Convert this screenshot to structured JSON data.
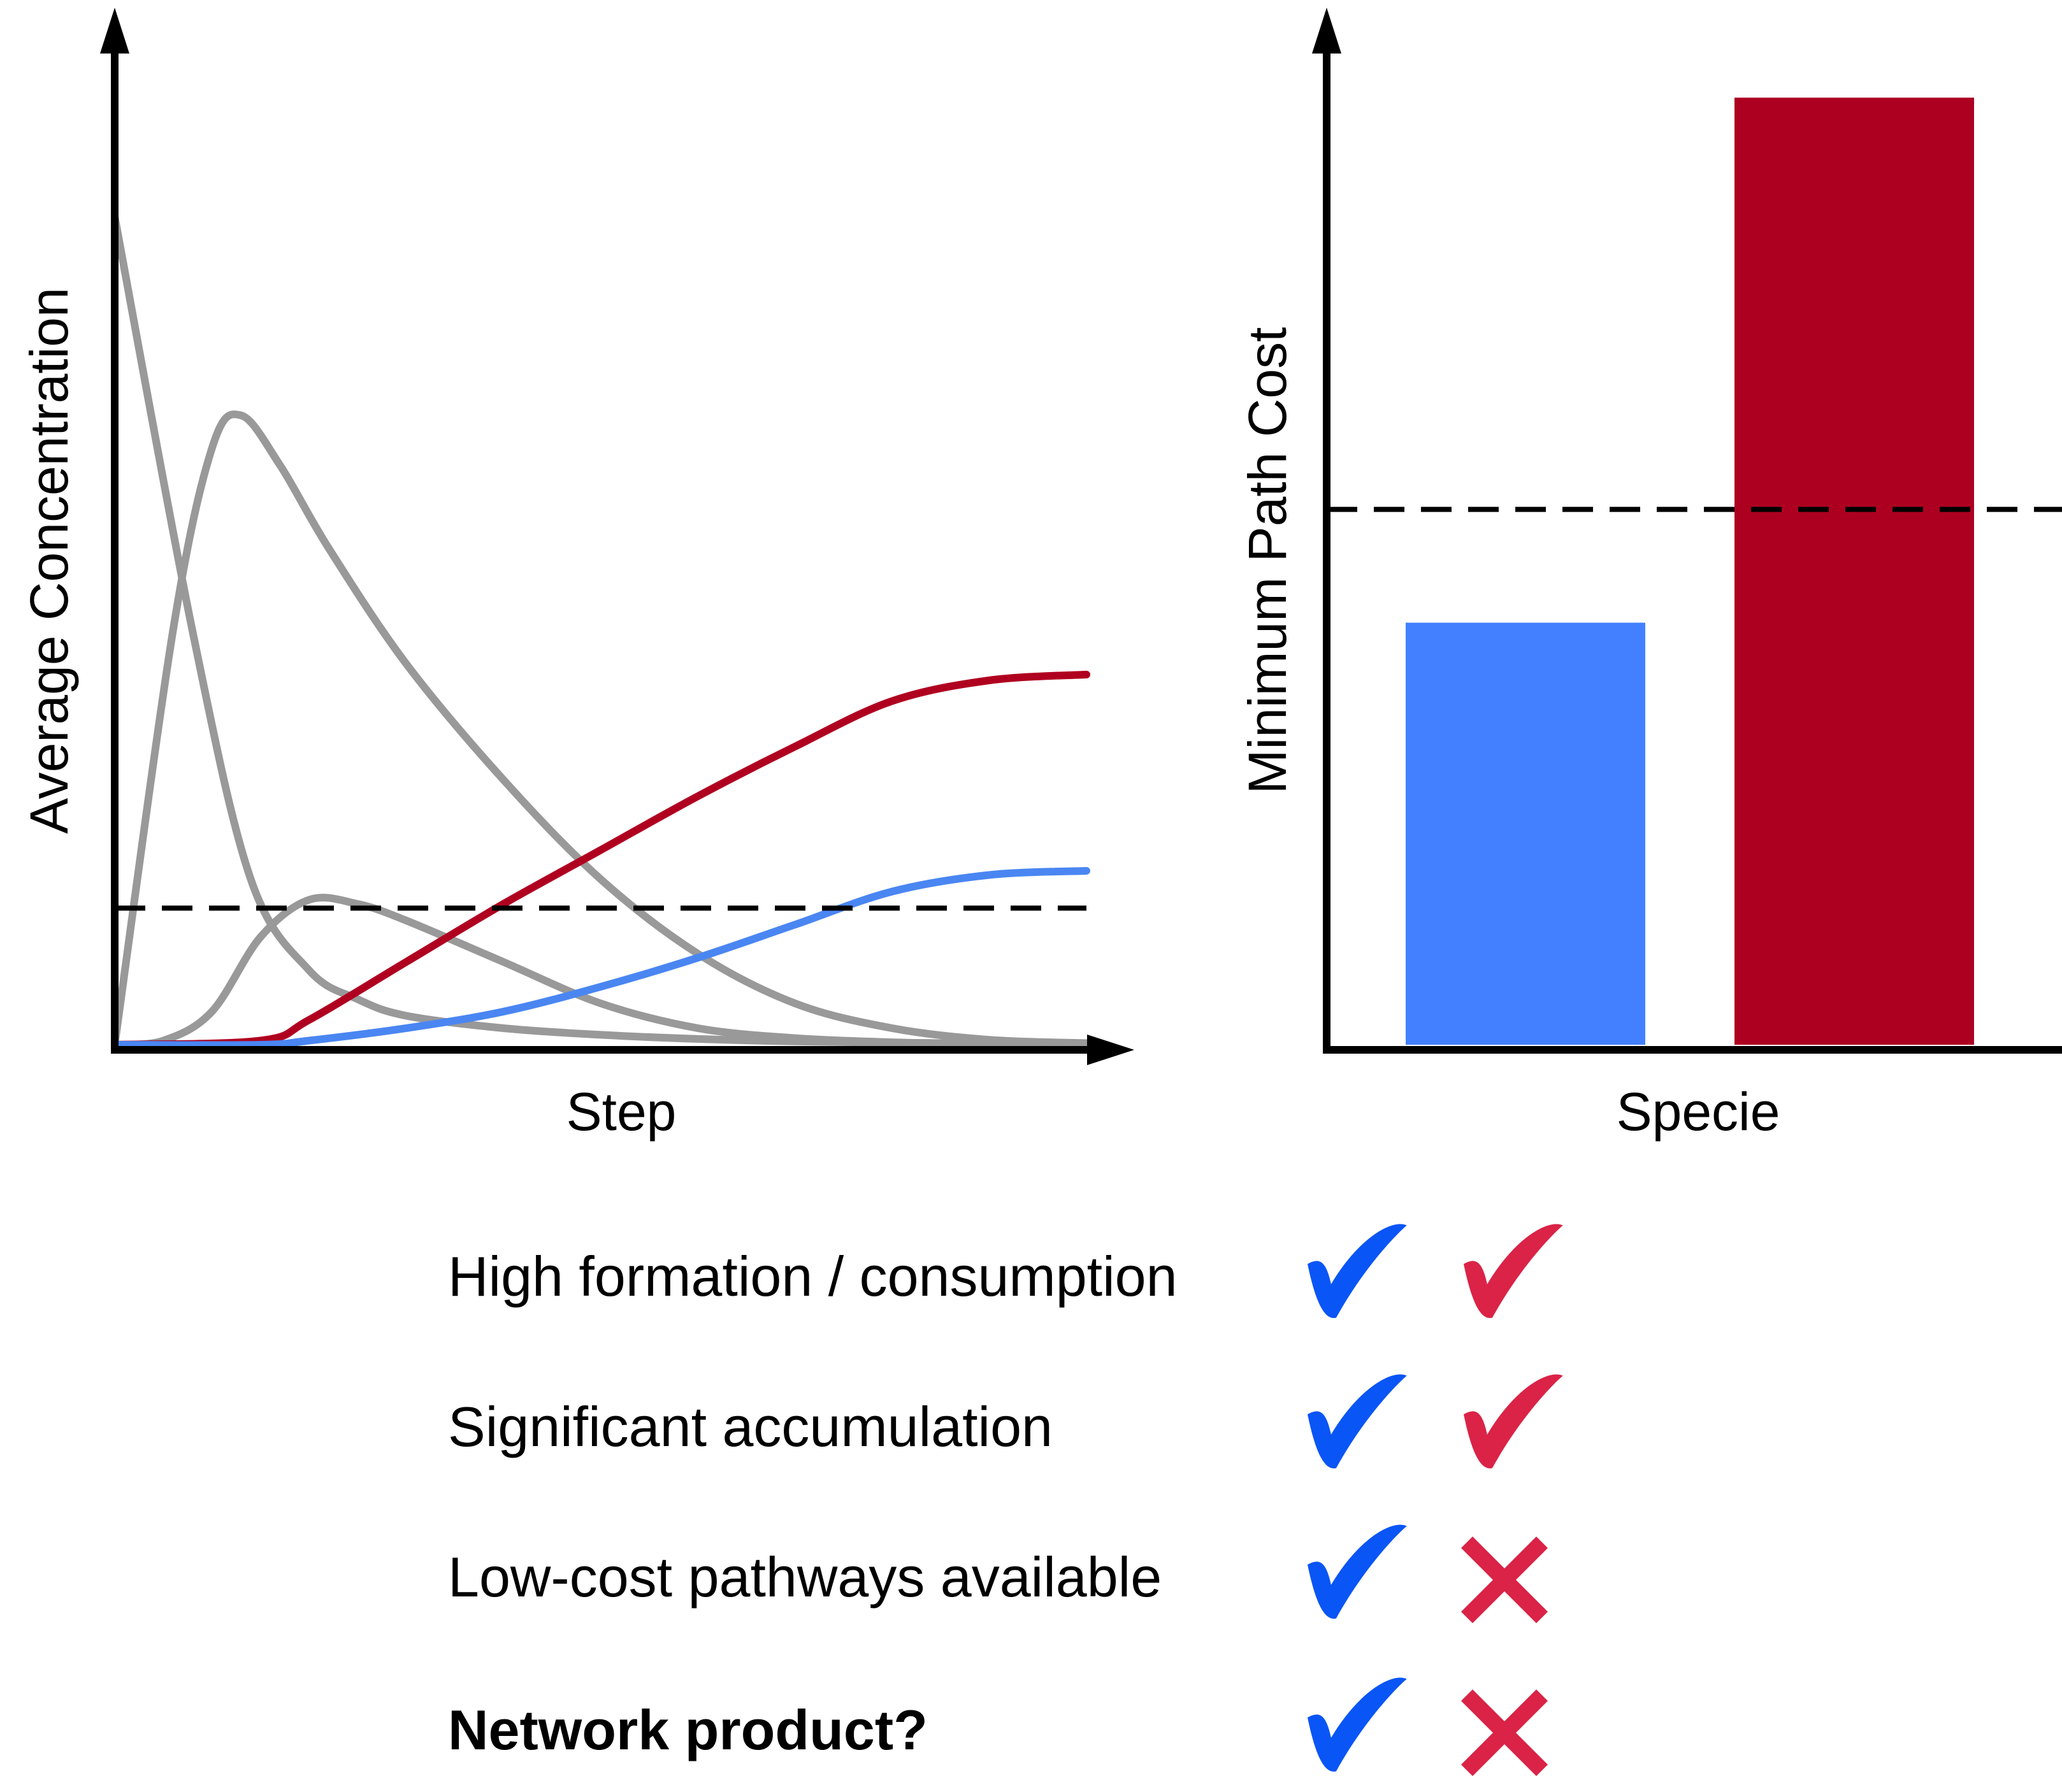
{
  "colors": {
    "gray": "#999999",
    "red_line": "#b00020",
    "blue_line": "#4a86f2",
    "blue_bar": "#4280ff",
    "red_bar": "#ad0021",
    "blue_mark": "#0a55f5",
    "red_mark": "#da2346"
  },
  "chart_data": [
    {
      "type": "line",
      "xlabel": "Step",
      "ylabel": "Average Concentration",
      "xlim": [
        0,
        1
      ],
      "ylim": [
        0,
        1
      ],
      "grid": false,
      "threshold": 0.165,
      "series": [
        {
          "color": "gray",
          "x": [
            0,
            0.08,
            0.14,
            0.2,
            0.25,
            0.3,
            0.4,
            0.5,
            0.6,
            0.7,
            0.85,
            1.0
          ],
          "y": [
            1.0,
            0.5,
            0.2,
            0.09,
            0.055,
            0.035,
            0.02,
            0.012,
            0.007,
            0.004,
            0.002,
            0.001
          ]
        },
        {
          "color": "gray",
          "x": [
            0,
            0.06,
            0.1,
            0.13,
            0.17,
            0.22,
            0.3,
            0.4,
            0.5,
            0.6,
            0.7,
            0.8,
            0.9,
            1.0
          ],
          "y": [
            0,
            0.5,
            0.72,
            0.76,
            0.7,
            0.6,
            0.46,
            0.32,
            0.2,
            0.11,
            0.05,
            0.02,
            0.006,
            0.002
          ]
        },
        {
          "color": "gray",
          "x": [
            0,
            0.05,
            0.1,
            0.15,
            0.2,
            0.25,
            0.3,
            0.4,
            0.5,
            0.6,
            0.7,
            0.8,
            0.9,
            1.0
          ],
          "y": [
            0,
            0.005,
            0.04,
            0.13,
            0.175,
            0.17,
            0.15,
            0.1,
            0.05,
            0.02,
            0.008,
            0.003,
            0.001,
            0
          ]
        },
        {
          "color": "red_line",
          "x": [
            0,
            0.15,
            0.2,
            0.3,
            0.4,
            0.5,
            0.6,
            0.7,
            0.8,
            0.9,
            1.0
          ],
          "y": [
            0,
            0.005,
            0.03,
            0.1,
            0.17,
            0.235,
            0.3,
            0.36,
            0.415,
            0.44,
            0.447
          ]
        },
        {
          "color": "blue_line",
          "x": [
            0,
            0.15,
            0.2,
            0.3,
            0.4,
            0.5,
            0.6,
            0.7,
            0.8,
            0.9,
            1.0
          ],
          "y": [
            0,
            0.0,
            0.005,
            0.02,
            0.04,
            0.07,
            0.105,
            0.145,
            0.185,
            0.205,
            0.21
          ]
        }
      ]
    },
    {
      "type": "bar",
      "xlabel": "Specie",
      "ylabel": "Minimum Path Cost",
      "ylim": [
        0,
        1
      ],
      "grid": false,
      "threshold": 0.52,
      "values": [
        0.41,
        0.92
      ],
      "colors": [
        "blue_bar",
        "red_bar"
      ]
    }
  ],
  "criteria": [
    {
      "label": "High formation / consumption",
      "bold": false,
      "blue": "check",
      "red": "check"
    },
    {
      "label": "Significant accumulation",
      "bold": false,
      "blue": "check",
      "red": "check"
    },
    {
      "label": "Low-cost pathways available",
      "bold": false,
      "blue": "check",
      "red": "cross"
    },
    {
      "label": "Network product?",
      "bold": true,
      "blue": "check",
      "red": "cross"
    }
  ]
}
